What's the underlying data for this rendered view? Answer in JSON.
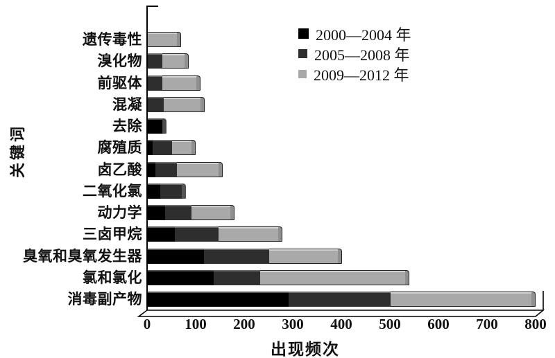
{
  "chart_data": {
    "type": "bar",
    "orientation": "horizontal",
    "stacked": true,
    "title": "",
    "xlabel": "出现频次",
    "ylabel": "关键词",
    "xlim": [
      0,
      800
    ],
    "xticks": [
      0,
      100,
      200,
      300,
      400,
      500,
      600,
      700,
      800
    ],
    "grid": false,
    "legend_position": "top-right",
    "categories": [
      "遗传毒性",
      "溴化物",
      "前驱体",
      "混凝",
      "去除",
      "腐殖质",
      "卤乙酸",
      "二氧化氯",
      "动力学",
      "三卤甲烷",
      "臭氧和臭氧发生器",
      "氯和氯化",
      "消毒副产物"
    ],
    "series": [
      {
        "name": "2000—2004 年",
        "color": "#000000",
        "values": [
          0,
          0,
          0,
          0,
          30,
          10,
          15,
          25,
          35,
          55,
          115,
          135,
          290
        ]
      },
      {
        "name": "2005—2008 年",
        "color": "#2e2e2e",
        "values": [
          0,
          30,
          30,
          33,
          0,
          40,
          45,
          45,
          55,
          90,
          135,
          97,
          210
        ]
      },
      {
        "name": "2009—2012 年",
        "color": "#a9a9a9",
        "values": [
          60,
          45,
          70,
          75,
          0,
          40,
          85,
          0,
          80,
          123,
          142,
          298,
          290
        ]
      }
    ]
  },
  "colors": {
    "axis": "#000000",
    "background": "#ffffff",
    "series_black": "#000000",
    "series_dark_gray": "#2e2e2e",
    "series_light_gray": "#a9a9a9"
  }
}
